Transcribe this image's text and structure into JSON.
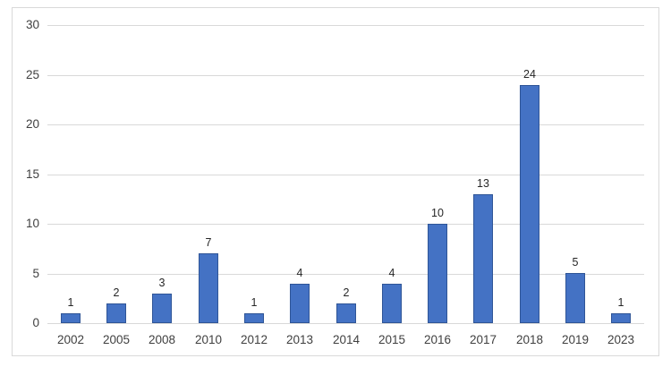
{
  "chart_data": {
    "type": "bar",
    "title": "",
    "xlabel": "",
    "ylabel": "",
    "categories": [
      "2002",
      "2005",
      "2008",
      "2010",
      "2012",
      "2013",
      "2014",
      "2015",
      "2016",
      "2017",
      "2018",
      "2019",
      "2023"
    ],
    "values": [
      1,
      2,
      3,
      7,
      1,
      4,
      2,
      4,
      10,
      13,
      24,
      5,
      1
    ],
    "data_labels": [
      1,
      2,
      3,
      7,
      1,
      4,
      2,
      4,
      10,
      13,
      24,
      5,
      1
    ],
    "yticks": [
      0,
      5,
      10,
      15,
      20,
      25,
      30
    ],
    "ylim": [
      0,
      30
    ],
    "grid": "horizontal",
    "legend": "none",
    "colors": {
      "bar_fill": "#4472C4",
      "bar_border": "#2F5597",
      "gridline": "#D9D9D9",
      "axis_line": "#D9D9D9",
      "frame_border": "#D9D9D9",
      "axis_text": "#404040",
      "data_label_text": "#262626",
      "background": "#FFFFFF"
    }
  }
}
